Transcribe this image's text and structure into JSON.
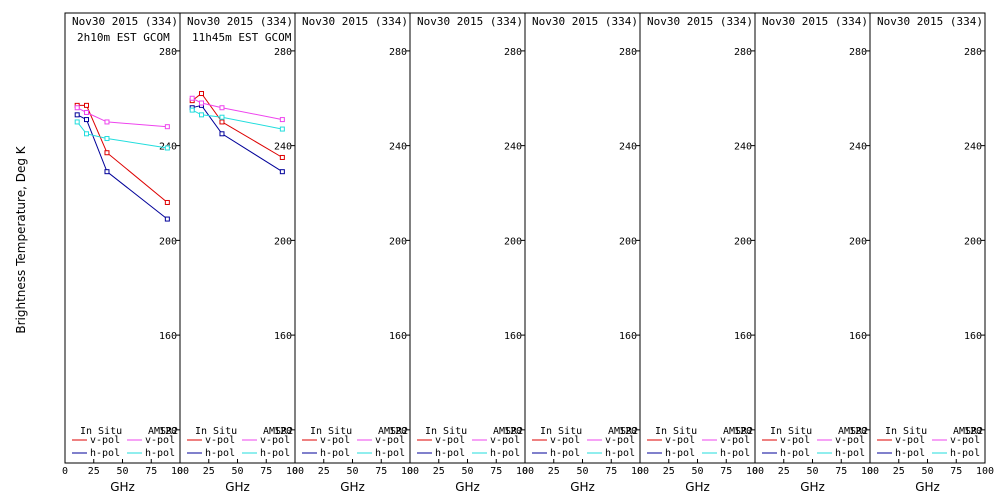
{
  "chart_data": {
    "type": "line",
    "ylabel": "Brightness Temperature, Deg K",
    "xlabel": "GHz",
    "xlim": [
      0,
      100
    ],
    "ylim": [
      106,
      296
    ],
    "xticks": [
      "0",
      "25",
      "50",
      "75",
      "100"
    ],
    "yticks": [
      "120",
      "160",
      "200",
      "240",
      "280"
    ],
    "legend": {
      "in_situ": "In Situ",
      "amsr2": "AMSR2",
      "vpol": "v-pol",
      "hpol": "h-pol"
    },
    "colors": {
      "insitu_v": "#dd0000",
      "insitu_h": "#000099",
      "amsr2_v": "#ee44ee",
      "amsr2_h": "#22dddd"
    },
    "panels": [
      {
        "title": "Nov30 2015 (334)",
        "subtitle": "2h10m EST GCOM",
        "series": [
          {
            "key": "insitu_v",
            "x": [
              10.6,
              18.7,
              36.5,
              89
            ],
            "y": [
              257,
              257,
              237,
              216
            ]
          },
          {
            "key": "insitu_h",
            "x": [
              10.6,
              18.7,
              36.5,
              89
            ],
            "y": [
              253,
              251,
              229,
              209
            ]
          },
          {
            "key": "amsr2_v",
            "x": [
              10.6,
              18.7,
              36.5,
              89
            ],
            "y": [
              256,
              254,
              250,
              248
            ]
          },
          {
            "key": "amsr2_h",
            "x": [
              10.6,
              18.7,
              36.5,
              89
            ],
            "y": [
              250,
              245,
              243,
              239
            ]
          }
        ]
      },
      {
        "title": "Nov30 2015 (334)",
        "subtitle": "11h45m EST GCOM",
        "series": [
          {
            "key": "insitu_v",
            "x": [
              10.6,
              18.7,
              36.5,
              89
            ],
            "y": [
              259,
              262,
              250,
              235
            ]
          },
          {
            "key": "insitu_h",
            "x": [
              10.6,
              18.7,
              36.5,
              89
            ],
            "y": [
              256,
              257,
              245,
              229
            ]
          },
          {
            "key": "amsr2_v",
            "x": [
              10.6,
              18.7,
              36.5,
              89
            ],
            "y": [
              260,
              258,
              256,
              251
            ]
          },
          {
            "key": "amsr2_h",
            "x": [
              10.6,
              18.7,
              36.5,
              89
            ],
            "y": [
              255,
              253,
              252,
              247
            ]
          }
        ]
      },
      {
        "title": "Nov30 2015 (334)",
        "subtitle": "",
        "series": []
      },
      {
        "title": "Nov30 2015 (334)",
        "subtitle": "",
        "series": []
      },
      {
        "title": "Nov30 2015 (334)",
        "subtitle": "",
        "series": []
      },
      {
        "title": "Nov30 2015 (334)",
        "subtitle": "",
        "series": []
      },
      {
        "title": "Nov30 2015 (334)",
        "subtitle": "",
        "series": []
      },
      {
        "title": "Nov30 2015 (334)",
        "subtitle": "",
        "series": []
      }
    ]
  }
}
